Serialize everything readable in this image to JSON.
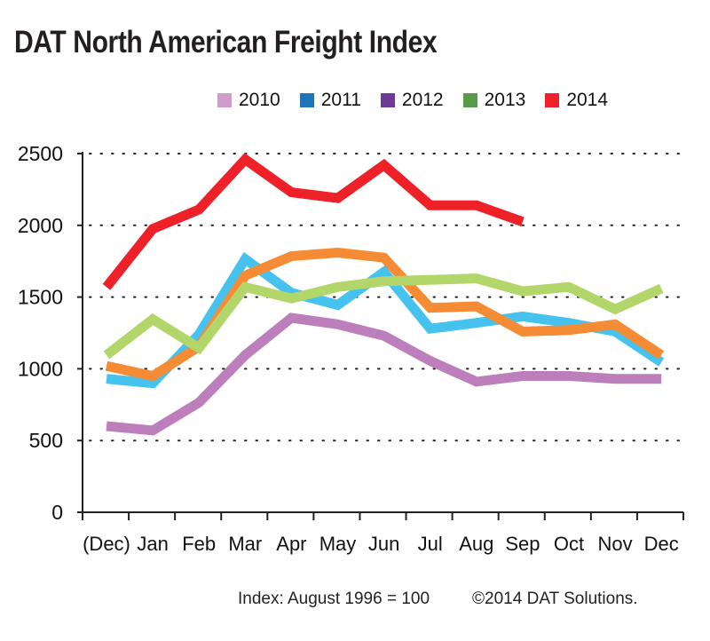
{
  "chart_data": {
    "type": "line",
    "title": "DAT North American Freight Index",
    "categories": [
      "(Dec)",
      "Jan",
      "Feb",
      "Mar",
      "Apr",
      "May",
      "Jun",
      "Jul",
      "Aug",
      "Sep",
      "Oct",
      "Nov",
      "Dec"
    ],
    "ylim": [
      0,
      2500
    ],
    "yticks": [
      "0",
      "500",
      "1000",
      "1500",
      "2000",
      "2500"
    ],
    "grid": "horizontal dotted",
    "legend_position": "top-right",
    "legend": [
      {
        "label": "2010",
        "color": "#cf9ccb"
      },
      {
        "label": "2011",
        "color": "#1f73b8"
      },
      {
        "label": "2012",
        "color": "#6e3a96"
      },
      {
        "label": "2013",
        "color": "#5a9c45"
      },
      {
        "label": "2014",
        "color": "#ee2028"
      }
    ],
    "series": [
      {
        "color": "#bd7fbc",
        "values": [
          600,
          570,
          765,
          1095,
          1355,
          1310,
          1230,
          1055,
          910,
          950,
          950,
          930,
          930
        ]
      },
      {
        "color": "#45c3ee",
        "values": [
          930,
          900,
          1240,
          1765,
          1530,
          1445,
          1675,
          1280,
          1320,
          1365,
          1320,
          1260,
          1045
        ]
      },
      {
        "color": "#f58b35",
        "values": [
          1020,
          950,
          1155,
          1650,
          1785,
          1810,
          1775,
          1425,
          1435,
          1260,
          1270,
          1310,
          1095
        ]
      },
      {
        "color": "#b3d66b",
        "values": [
          1095,
          1345,
          1145,
          1570,
          1490,
          1570,
          1610,
          1620,
          1630,
          1540,
          1570,
          1415,
          1560
        ]
      },
      {
        "color": "#ee2028",
        "values": [
          1570,
          1975,
          2110,
          2460,
          2230,
          2190,
          2420,
          2140,
          2140,
          2025,
          null,
          null,
          null
        ]
      }
    ]
  },
  "footer": {
    "note": "Index: August 1996 = 100",
    "copyright": "©2014 DAT Solutions."
  }
}
